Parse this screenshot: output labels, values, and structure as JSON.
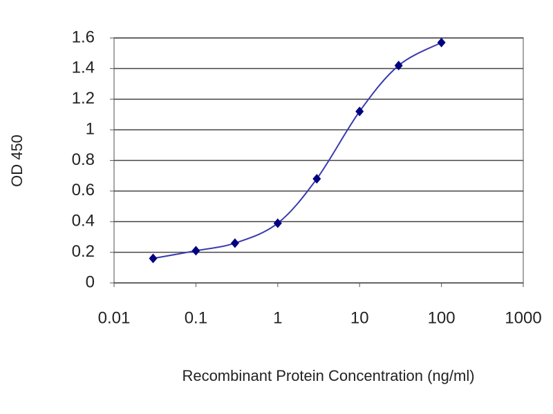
{
  "chart_data": {
    "type": "line",
    "x_label": "Recombinant Protein Concentration (ng/ml)",
    "y_label": "OD 450",
    "x": [
      0.03,
      0.1,
      0.3,
      1,
      3,
      10,
      30,
      100
    ],
    "series": [
      {
        "color": "#000080",
        "values": [
          0.16,
          0.21,
          0.26,
          0.39,
          0.68,
          1.12,
          1.42,
          1.57
        ]
      }
    ],
    "xlim": [
      0.01,
      1000
    ],
    "xticks": [
      0.01,
      0.1,
      1,
      10,
      100,
      1000
    ],
    "x_log": true,
    "ylim": [
      0,
      1.6
    ],
    "yticks": [
      0,
      0.2,
      0.4,
      0.6,
      0.8,
      1,
      1.2,
      1.4,
      1.6
    ],
    "grid": true
  }
}
